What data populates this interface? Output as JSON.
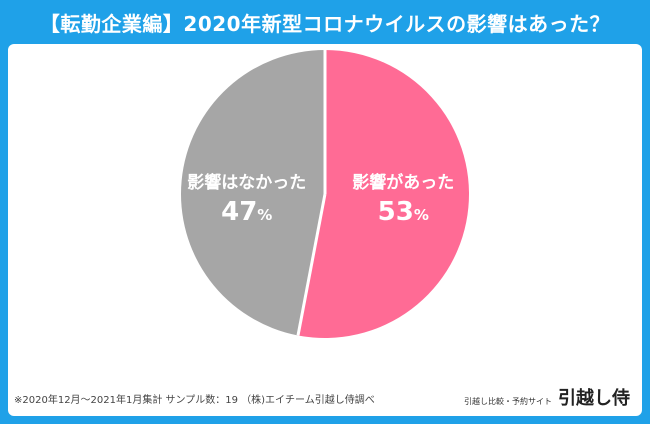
{
  "title": "【転勤企業編】2020年新型コロナウイルスの影響はあった？",
  "chart_data": {
    "type": "pie",
    "categories": [
      "影響があった",
      "影響はなかった"
    ],
    "values": [
      53,
      47
    ],
    "value_labels": [
      "53",
      "47"
    ],
    "unit": "%",
    "colors": [
      "#ff6b95",
      "#a6a6a6"
    ],
    "start": "12 o'clock",
    "direction": "clockwise"
  },
  "footer": {
    "note": "※2020年12月〜2021年1月集計 サンプル数：19 （株)エイチーム引越し侍調べ",
    "tagline": "引越し比較・予約サイト",
    "brand": "引越し侍"
  }
}
